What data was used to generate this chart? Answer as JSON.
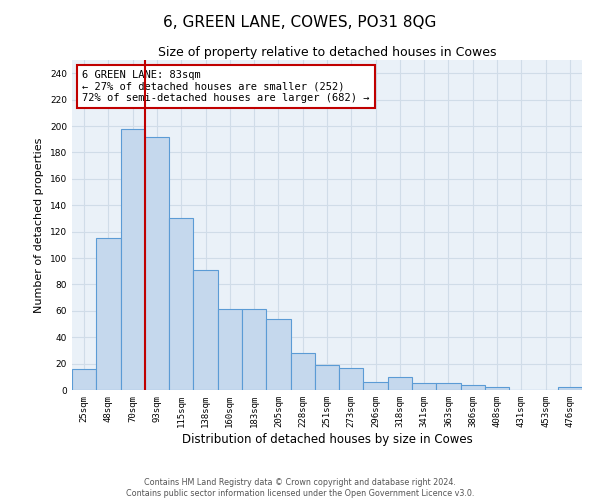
{
  "title": "6, GREEN LANE, COWES, PO31 8QG",
  "subtitle": "Size of property relative to detached houses in Cowes",
  "xlabel": "Distribution of detached houses by size in Cowes",
  "ylabel": "Number of detached properties",
  "footer_line1": "Contains HM Land Registry data © Crown copyright and database right 2024.",
  "footer_line2": "Contains public sector information licensed under the Open Government Licence v3.0.",
  "categories": [
    "25sqm",
    "48sqm",
    "70sqm",
    "93sqm",
    "115sqm",
    "138sqm",
    "160sqm",
    "183sqm",
    "205sqm",
    "228sqm",
    "251sqm",
    "273sqm",
    "296sqm",
    "318sqm",
    "341sqm",
    "363sqm",
    "386sqm",
    "408sqm",
    "431sqm",
    "453sqm",
    "476sqm"
  ],
  "values": [
    16,
    115,
    198,
    192,
    130,
    91,
    61,
    61,
    54,
    28,
    19,
    17,
    6,
    10,
    5,
    5,
    4,
    2,
    0,
    0,
    2
  ],
  "bar_color": "#c5d8ed",
  "bar_edge_color": "#5b9bd5",
  "marker_line_color": "#c00000",
  "annotation_text": "6 GREEN LANE: 83sqm\n← 27% of detached houses are smaller (252)\n72% of semi-detached houses are larger (682) →",
  "annotation_box_color": "white",
  "annotation_box_edge": "#c00000",
  "ylim": [
    0,
    250
  ],
  "yticks": [
    0,
    20,
    40,
    60,
    80,
    100,
    120,
    140,
    160,
    180,
    200,
    220,
    240
  ],
  "grid_color": "#d0dce8",
  "bg_color": "#eaf1f8",
  "title_fontsize": 11,
  "subtitle_fontsize": 9,
  "tick_fontsize": 6.5,
  "ylabel_fontsize": 8,
  "xlabel_fontsize": 8.5,
  "annotation_fontsize": 7.5,
  "footer_fontsize": 5.8
}
